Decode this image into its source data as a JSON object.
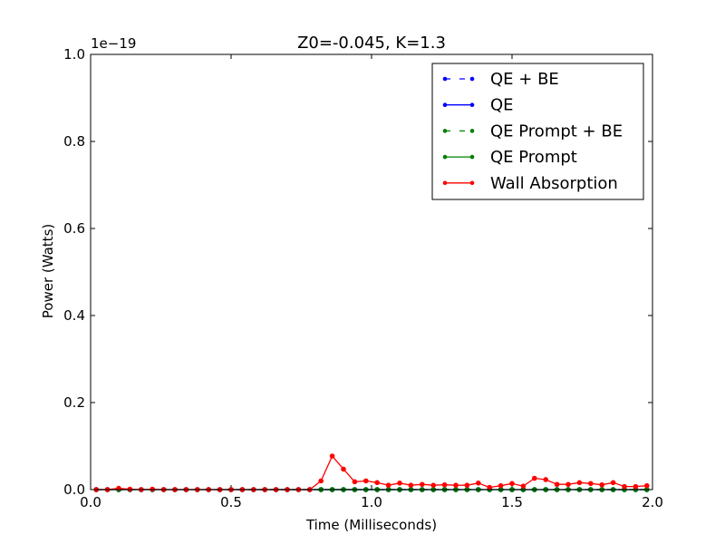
{
  "chart_data": {
    "type": "line",
    "title": "Z0=-0.045, K=1.3",
    "xlabel": "Time (Milliseconds)",
    "ylabel": "Power (Watts)",
    "offset_label": "1e−19",
    "xlim": [
      0,
      2.0
    ],
    "ylim": [
      0,
      1.0
    ],
    "xticks": [
      "0.0",
      "0.5",
      "1.0",
      "1.5",
      "2.0"
    ],
    "yticks": [
      "0.0",
      "0.2",
      "0.4",
      "0.6",
      "0.8",
      "1.0"
    ],
    "legend_position": "top-right",
    "grid": false,
    "x": [
      0.02,
      0.06,
      0.1,
      0.14,
      0.18,
      0.22,
      0.26,
      0.3,
      0.34,
      0.38,
      0.42,
      0.46,
      0.5,
      0.54,
      0.58,
      0.62,
      0.66,
      0.7,
      0.74,
      0.78,
      0.82,
      0.86,
      0.9,
      0.94,
      0.98,
      1.02,
      1.06,
      1.1,
      1.14,
      1.18,
      1.22,
      1.26,
      1.3,
      1.34,
      1.38,
      1.42,
      1.46,
      1.5,
      1.54,
      1.58,
      1.62,
      1.66,
      1.7,
      1.74,
      1.78,
      1.82,
      1.86,
      1.9,
      1.94,
      1.98
    ],
    "series": [
      {
        "name": "QE + BE",
        "color": "#0000ff",
        "linestyle": "dashed",
        "values": [
          0,
          0,
          0,
          0,
          0,
          0,
          0,
          0,
          0,
          0,
          0,
          0,
          0,
          0,
          0,
          0,
          0,
          0,
          0,
          0,
          0,
          0,
          0,
          0,
          0,
          0,
          0,
          0,
          0,
          0,
          0,
          0,
          0,
          0,
          0,
          0,
          0,
          0,
          0,
          0,
          0,
          0,
          0,
          0,
          0,
          0,
          0,
          0,
          0,
          0
        ]
      },
      {
        "name": "QE",
        "color": "#0000ff",
        "linestyle": "solid",
        "values": [
          0,
          0,
          0,
          0,
          0,
          0,
          0,
          0,
          0,
          0,
          0,
          0,
          0,
          0,
          0,
          0,
          0,
          0,
          0,
          0,
          0,
          0,
          0,
          0,
          0,
          0,
          0,
          0,
          0,
          0,
          0,
          0,
          0,
          0,
          0,
          0,
          0,
          0,
          0,
          0,
          0,
          0,
          0,
          0,
          0,
          0,
          0,
          0,
          0,
          0
        ]
      },
      {
        "name": "QE Prompt + BE",
        "color": "#008000",
        "linestyle": "dashed",
        "values": [
          0,
          0,
          0,
          0,
          0,
          0,
          0,
          0,
          0,
          0,
          0,
          0,
          0,
          0,
          0,
          0,
          0,
          0,
          0,
          0,
          0,
          0,
          0,
          0,
          0,
          0,
          0,
          0,
          0,
          0,
          0,
          0,
          0,
          0,
          0,
          0,
          0,
          0,
          0,
          0,
          0,
          0,
          0,
          0,
          0,
          0,
          0,
          0,
          0,
          0
        ]
      },
      {
        "name": "QE Prompt",
        "color": "#008000",
        "linestyle": "solid",
        "values": [
          0,
          0,
          0,
          0,
          0,
          0,
          0,
          0,
          0,
          0,
          0,
          0,
          0,
          0,
          0,
          0,
          0,
          0,
          0,
          0,
          0,
          0,
          0,
          0,
          0,
          0,
          0,
          0,
          0,
          0,
          0,
          0,
          0,
          0,
          0,
          0,
          0,
          0,
          0,
          0,
          0,
          0,
          0,
          0,
          0,
          0,
          0,
          0,
          0,
          0
        ]
      },
      {
        "name": "Wall Absorption",
        "color": "#ff0000",
        "linestyle": "solid",
        "values": [
          0,
          0,
          0.003,
          0.001,
          0,
          0.001,
          0,
          0,
          0,
          0,
          0,
          0,
          0,
          0,
          0,
          0,
          0,
          0,
          0,
          0,
          0.02,
          0.077,
          0.047,
          0.018,
          0.02,
          0.016,
          0.01,
          0.015,
          0.01,
          0.012,
          0.01,
          0.011,
          0.01,
          0.01,
          0.015,
          0.005,
          0.009,
          0.014,
          0.008,
          0.026,
          0.023,
          0.012,
          0.012,
          0.016,
          0.014,
          0.011,
          0.016,
          0.007,
          0.007,
          0.009
        ]
      }
    ]
  }
}
